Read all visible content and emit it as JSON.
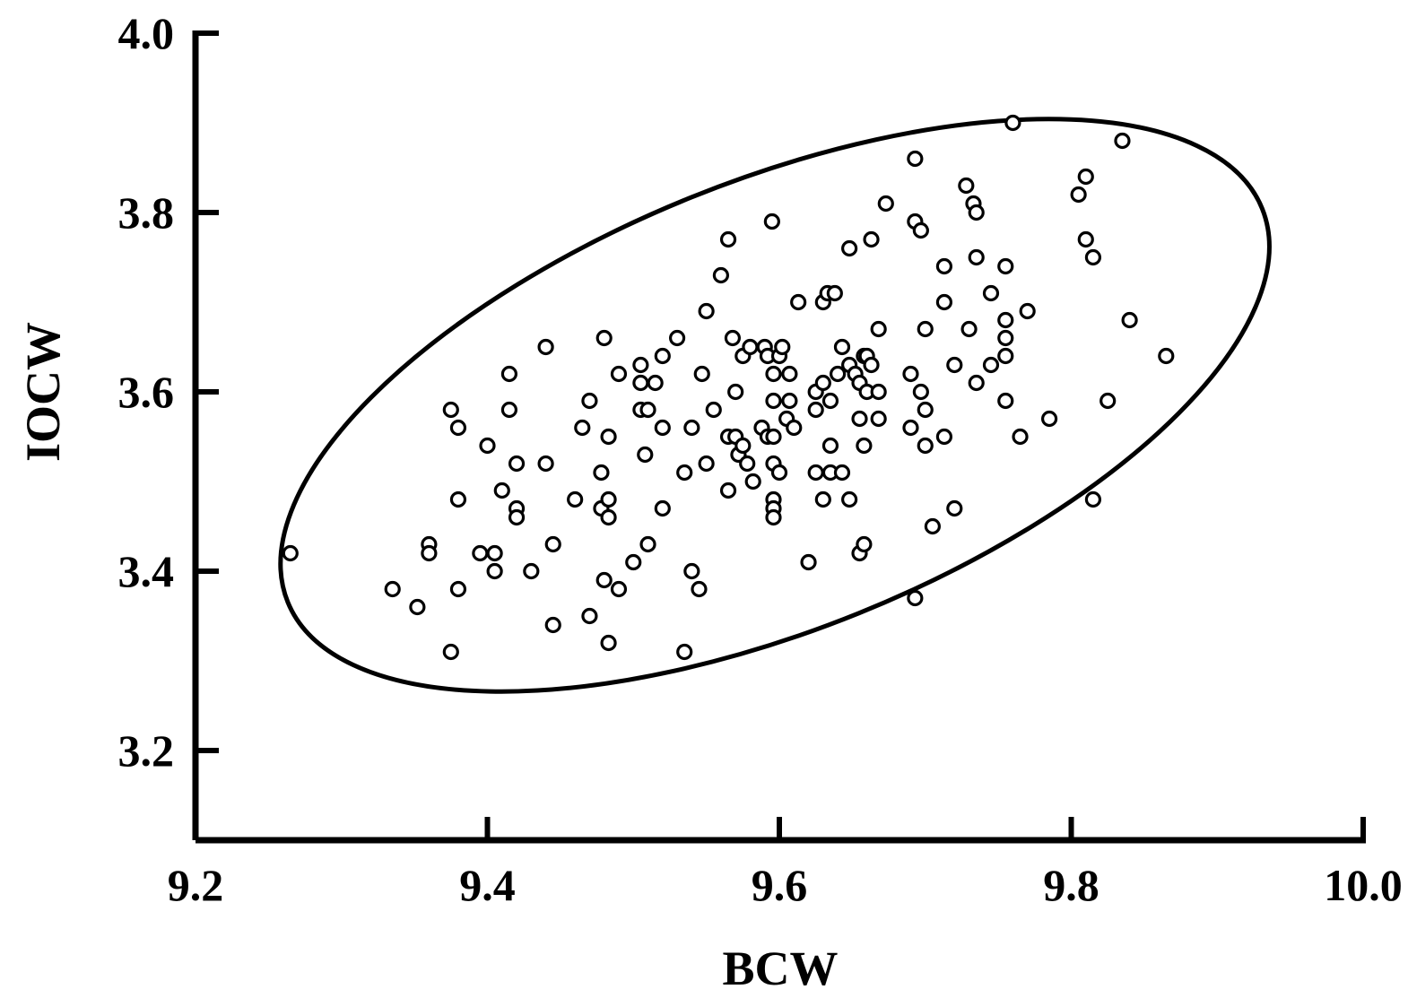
{
  "chart_data": {
    "type": "scatter",
    "title": "",
    "xlabel": "BCW",
    "ylabel": "IOCW",
    "xlim": [
      9.2,
      10.0
    ],
    "ylim": [
      3.1,
      4.0
    ],
    "xticks": [
      "9.2",
      "9.4",
      "9.6",
      "9.8",
      "10.0"
    ],
    "yticks": [
      "3.2",
      "3.4",
      "3.6",
      "3.8",
      "4.0"
    ],
    "grid": false,
    "marker": "open-circle",
    "color": "#000000",
    "annotation": "confidence ellipse enclosing points",
    "series": [
      {
        "points": [
          [
            9.265,
            3.42
          ],
          [
            9.335,
            3.38
          ],
          [
            9.352,
            3.36
          ],
          [
            9.36,
            3.43
          ],
          [
            9.36,
            3.42
          ],
          [
            9.375,
            3.58
          ],
          [
            9.38,
            3.56
          ],
          [
            9.38,
            3.48
          ],
          [
            9.38,
            3.38
          ],
          [
            9.375,
            3.31
          ],
          [
            9.395,
            3.42
          ],
          [
            9.4,
            3.54
          ],
          [
            9.405,
            3.42
          ],
          [
            9.405,
            3.4
          ],
          [
            9.41,
            3.49
          ],
          [
            9.415,
            3.62
          ],
          [
            9.415,
            3.58
          ],
          [
            9.42,
            3.52
          ],
          [
            9.42,
            3.47
          ],
          [
            9.42,
            3.46
          ],
          [
            9.43,
            3.4
          ],
          [
            9.44,
            3.65
          ],
          [
            9.44,
            3.52
          ],
          [
            9.445,
            3.43
          ],
          [
            9.445,
            3.34
          ],
          [
            9.46,
            3.48
          ],
          [
            9.465,
            3.56
          ],
          [
            9.47,
            3.59
          ],
          [
            9.47,
            3.35
          ],
          [
            9.48,
            3.66
          ],
          [
            9.478,
            3.51
          ],
          [
            9.478,
            3.47
          ],
          [
            9.48,
            3.39
          ],
          [
            9.483,
            3.55
          ],
          [
            9.483,
            3.48
          ],
          [
            9.483,
            3.46
          ],
          [
            9.483,
            3.32
          ],
          [
            9.49,
            3.62
          ],
          [
            9.49,
            3.38
          ],
          [
            9.5,
            3.41
          ],
          [
            9.505,
            3.63
          ],
          [
            9.505,
            3.61
          ],
          [
            9.505,
            3.58
          ],
          [
            9.508,
            3.53
          ],
          [
            9.51,
            3.58
          ],
          [
            9.51,
            3.43
          ],
          [
            9.515,
            3.61
          ],
          [
            9.52,
            3.64
          ],
          [
            9.52,
            3.56
          ],
          [
            9.52,
            3.47
          ],
          [
            9.53,
            3.66
          ],
          [
            9.535,
            3.51
          ],
          [
            9.535,
            3.31
          ],
          [
            9.54,
            3.56
          ],
          [
            9.54,
            3.4
          ],
          [
            9.545,
            3.38
          ],
          [
            9.547,
            3.62
          ],
          [
            9.55,
            3.69
          ],
          [
            9.55,
            3.52
          ],
          [
            9.555,
            3.58
          ],
          [
            9.56,
            3.73
          ],
          [
            9.565,
            3.77
          ],
          [
            9.565,
            3.55
          ],
          [
            9.565,
            3.49
          ],
          [
            9.568,
            3.66
          ],
          [
            9.57,
            3.6
          ],
          [
            9.57,
            3.55
          ],
          [
            9.572,
            3.53
          ],
          [
            9.575,
            3.64
          ],
          [
            9.575,
            3.54
          ],
          [
            9.578,
            3.52
          ],
          [
            9.58,
            3.65
          ],
          [
            9.582,
            3.5
          ],
          [
            9.588,
            3.56
          ],
          [
            9.59,
            3.65
          ],
          [
            9.592,
            3.64
          ],
          [
            9.592,
            3.55
          ],
          [
            9.595,
            3.79
          ],
          [
            9.596,
            3.62
          ],
          [
            9.596,
            3.59
          ],
          [
            9.596,
            3.55
          ],
          [
            9.596,
            3.52
          ],
          [
            9.596,
            3.48
          ],
          [
            9.596,
            3.47
          ],
          [
            9.596,
            3.46
          ],
          [
            9.6,
            3.64
          ],
          [
            9.6,
            3.51
          ],
          [
            9.602,
            3.65
          ],
          [
            9.605,
            3.57
          ],
          [
            9.607,
            3.62
          ],
          [
            9.607,
            3.59
          ],
          [
            9.61,
            3.56
          ],
          [
            9.613,
            3.7
          ],
          [
            9.62,
            3.41
          ],
          [
            9.625,
            3.6
          ],
          [
            9.625,
            3.58
          ],
          [
            9.625,
            3.51
          ],
          [
            9.63,
            3.7
          ],
          [
            9.63,
            3.61
          ],
          [
            9.63,
            3.48
          ],
          [
            9.633,
            3.71
          ],
          [
            9.635,
            3.59
          ],
          [
            9.635,
            3.54
          ],
          [
            9.635,
            3.51
          ],
          [
            9.638,
            3.71
          ],
          [
            9.64,
            3.62
          ],
          [
            9.643,
            3.65
          ],
          [
            9.643,
            3.51
          ],
          [
            9.648,
            3.76
          ],
          [
            9.648,
            3.63
          ],
          [
            9.648,
            3.48
          ],
          [
            9.652,
            3.62
          ],
          [
            9.655,
            3.61
          ],
          [
            9.655,
            3.57
          ],
          [
            9.655,
            3.42
          ],
          [
            9.658,
            3.64
          ],
          [
            9.658,
            3.54
          ],
          [
            9.658,
            3.43
          ],
          [
            9.66,
            3.6
          ],
          [
            9.66,
            3.64
          ],
          [
            9.663,
            3.77
          ],
          [
            9.663,
            3.63
          ],
          [
            9.668,
            3.67
          ],
          [
            9.668,
            3.6
          ],
          [
            9.668,
            3.57
          ],
          [
            9.673,
            3.81
          ],
          [
            9.69,
            3.62
          ],
          [
            9.69,
            3.56
          ],
          [
            9.693,
            3.86
          ],
          [
            9.693,
            3.79
          ],
          [
            9.693,
            3.37
          ],
          [
            9.697,
            3.6
          ],
          [
            9.697,
            3.78
          ],
          [
            9.7,
            3.67
          ],
          [
            9.7,
            3.58
          ],
          [
            9.7,
            3.54
          ],
          [
            9.705,
            3.45
          ],
          [
            9.713,
            3.74
          ],
          [
            9.713,
            3.7
          ],
          [
            9.713,
            3.55
          ],
          [
            9.72,
            3.63
          ],
          [
            9.72,
            3.47
          ],
          [
            9.728,
            3.83
          ],
          [
            9.73,
            3.67
          ],
          [
            9.733,
            3.81
          ],
          [
            9.735,
            3.8
          ],
          [
            9.735,
            3.75
          ],
          [
            9.735,
            3.61
          ],
          [
            9.745,
            3.71
          ],
          [
            9.745,
            3.63
          ],
          [
            9.755,
            3.74
          ],
          [
            9.755,
            3.68
          ],
          [
            9.755,
            3.66
          ],
          [
            9.755,
            3.64
          ],
          [
            9.755,
            3.59
          ],
          [
            9.76,
            3.9
          ],
          [
            9.765,
            3.55
          ],
          [
            9.77,
            3.69
          ],
          [
            9.785,
            3.57
          ],
          [
            9.805,
            3.82
          ],
          [
            9.81,
            3.84
          ],
          [
            9.81,
            3.77
          ],
          [
            9.815,
            3.75
          ],
          [
            9.815,
            3.48
          ],
          [
            9.825,
            3.59
          ],
          [
            9.835,
            3.88
          ],
          [
            9.84,
            3.68
          ],
          [
            9.865,
            3.64
          ]
        ]
      }
    ],
    "ellipse": {
      "cx": 9.597,
      "cy": 3.585,
      "rx": 0.36,
      "ry": 0.25,
      "angle_deg": -22
    }
  }
}
